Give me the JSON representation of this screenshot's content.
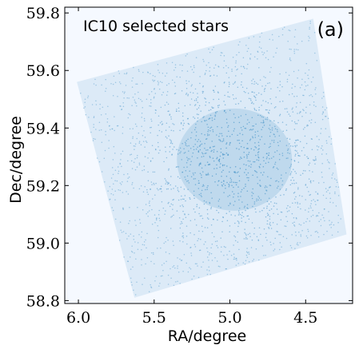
{
  "chart_data": {
    "type": "scatter",
    "title": "",
    "xlabel": "RA/degree",
    "ylabel": "Dec/degree",
    "xlim": [
      6.09,
      4.19
    ],
    "ylim": [
      58.79,
      59.82
    ],
    "x_inverted": true,
    "x_ticks": [
      6.0,
      5.5,
      5.0,
      4.5
    ],
    "x_tick_labels": [
      "6.0",
      "5.5",
      "5.0",
      "4.5"
    ],
    "y_ticks": [
      58.8,
      59.0,
      59.2,
      59.4,
      59.6,
      59.8
    ],
    "y_tick_labels": [
      "58.8",
      "59.0",
      "59.2",
      "59.4",
      "59.6",
      "59.8"
    ],
    "annotations": [
      "IC10 selected stars",
      "(a)"
    ],
    "grid": false,
    "background_color": "#f5f9ff",
    "point_color": "#4a96c9",
    "series": [
      {
        "footprint_corners": [
          {
            "x": 6.01,
            "y": 59.56
          },
          {
            "x": 4.45,
            "y": 59.78
          },
          {
            "x": 4.23,
            "y": 59.03
          },
          {
            "x": 5.63,
            "y": 58.81
          }
        ],
        "density_center": {
          "x": 4.97,
          "y": 59.29
        },
        "central_void": {
          "x": 4.97,
          "y": 59.3
        },
        "points": [
          {
            "x": 5.9,
            "y": 59.5
          },
          {
            "x": 5.6,
            "y": 59.55
          },
          {
            "x": 5.3,
            "y": 59.6
          },
          {
            "x": 5.0,
            "y": 59.65
          },
          {
            "x": 4.7,
            "y": 59.7
          },
          {
            "x": 4.55,
            "y": 59.6
          },
          {
            "x": 4.5,
            "y": 59.4
          },
          {
            "x": 4.4,
            "y": 59.2
          },
          {
            "x": 4.35,
            "y": 59.05
          },
          {
            "x": 4.7,
            "y": 59.0
          },
          {
            "x": 5.0,
            "y": 58.95
          },
          {
            "x": 5.3,
            "y": 58.9
          },
          {
            "x": 5.55,
            "y": 58.86
          },
          {
            "x": 5.7,
            "y": 59.05
          },
          {
            "x": 5.8,
            "y": 59.25
          },
          {
            "x": 5.9,
            "y": 59.4
          },
          {
            "x": 5.2,
            "y": 59.35
          },
          {
            "x": 4.8,
            "y": 59.25
          },
          {
            "x": 5.1,
            "y": 59.2
          },
          {
            "x": 4.9,
            "y": 59.4
          }
        ]
      }
    ]
  }
}
